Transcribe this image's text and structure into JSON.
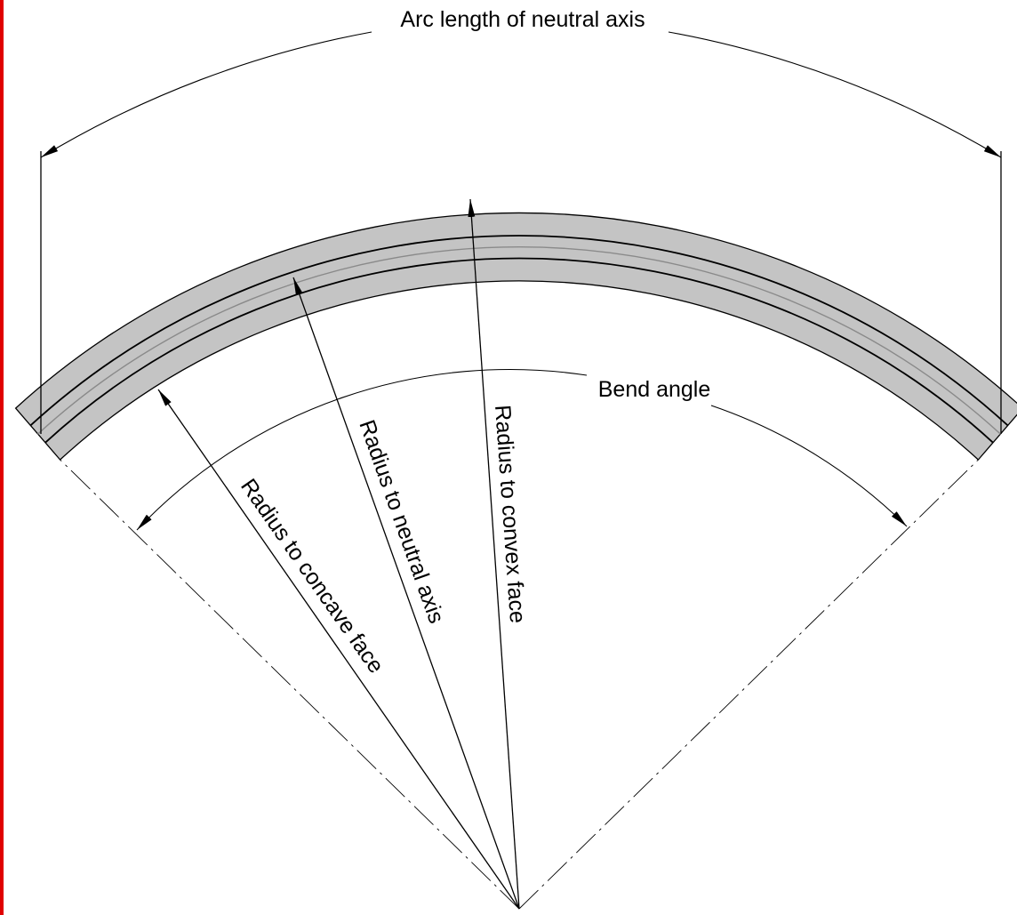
{
  "labels": {
    "arc_length": "Arc length of neutral axis",
    "bend_angle": "Bend angle",
    "radius_concave": "Radius to concave face",
    "radius_neutral": "Radius to neutral axis",
    "radius_convex": "Radius to convex face"
  },
  "colors": {
    "band_fill": "#c4c4c4",
    "line": "#000000",
    "neutral_line": "#8a8a8a",
    "left_border": "#e00000"
  }
}
